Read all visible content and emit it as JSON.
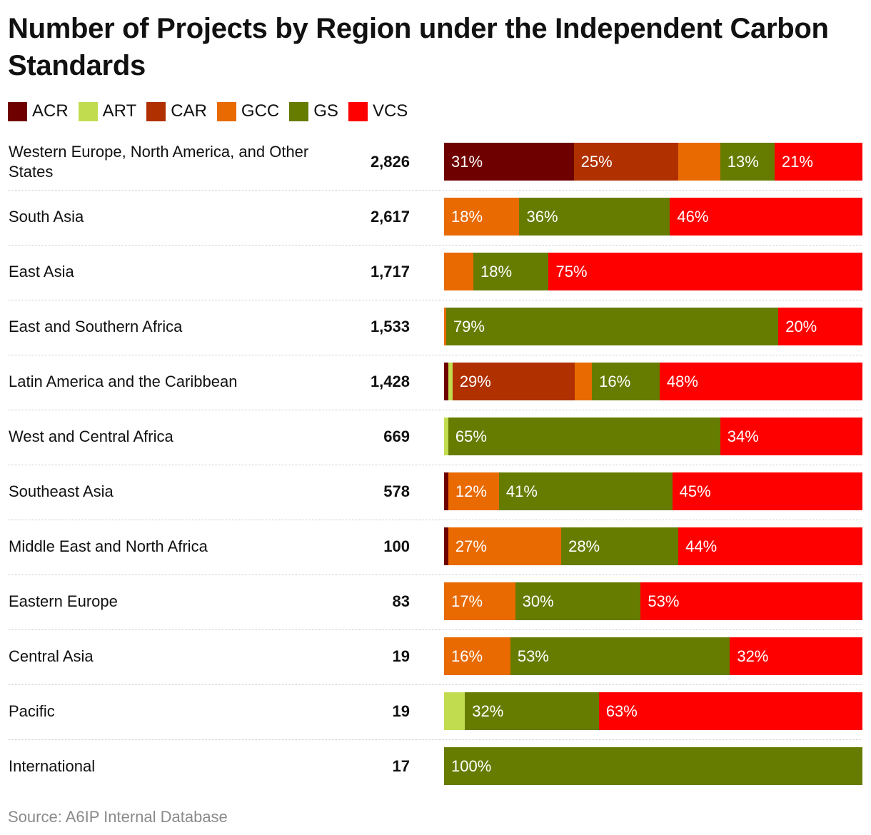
{
  "title": "Number of Projects by Region under the Independent Carbon Standards",
  "source": "Source: A6IP Internal Database",
  "colors": {
    "ACR": "#6e0000",
    "ART": "#c2dc50",
    "CAR": "#b03000",
    "GCC": "#e86a00",
    "GS": "#667c00",
    "VCS": "#ff0000"
  },
  "chart_data": {
    "type": "bar",
    "orientation": "horizontal",
    "stacked": "100%",
    "title": "Number of Projects by Region under the Independent Carbon Standards",
    "legend": [
      "ACR",
      "ART",
      "CAR",
      "GCC",
      "GS",
      "VCS"
    ],
    "legend_position": "top-left",
    "categories": [
      "Western Europe, North America, and Other States",
      "South Asia",
      "East Asia",
      "East and Southern Africa",
      "Latin America and the Caribbean",
      "West and Central Africa",
      "Southeast Asia",
      "Middle East and North Africa",
      "Eastern Europe",
      "Central Asia",
      "Pacific",
      "International"
    ],
    "totals": [
      "2,826",
      "2,617",
      "1,717",
      "1,533",
      "1,428",
      "669",
      "578",
      "100",
      "83",
      "19",
      "19",
      "17"
    ],
    "series": [
      {
        "name": "ACR",
        "values": [
          31,
          0,
          0,
          0,
          1,
          0,
          1,
          1,
          0,
          0,
          0,
          0
        ]
      },
      {
        "name": "ART",
        "values": [
          0,
          0,
          0,
          0,
          1,
          1,
          0,
          0,
          0,
          0,
          5,
          0
        ]
      },
      {
        "name": "CAR",
        "values": [
          25,
          0,
          0,
          0,
          29,
          0,
          0,
          0,
          0,
          0,
          0,
          0
        ]
      },
      {
        "name": "GCC",
        "values": [
          10,
          18,
          7,
          0.5,
          4,
          0,
          12,
          27,
          17,
          16,
          0,
          0
        ]
      },
      {
        "name": "GS",
        "values": [
          13,
          36,
          18,
          79,
          16,
          65,
          41,
          28,
          30,
          53,
          32,
          100
        ]
      },
      {
        "name": "VCS",
        "values": [
          21,
          46,
          75,
          20,
          48,
          34,
          45,
          44,
          53,
          32,
          63,
          0
        ]
      }
    ],
    "labels": [
      [
        "31%",
        "",
        "25%",
        "",
        "13%",
        "21%"
      ],
      [
        "",
        "",
        "",
        "18%",
        "36%",
        "46%"
      ],
      [
        "",
        "",
        "",
        "",
        "18%",
        "75%"
      ],
      [
        "",
        "",
        "",
        "",
        "79%",
        "20%"
      ],
      [
        "",
        "",
        "29%",
        "",
        "16%",
        "48%"
      ],
      [
        "",
        "",
        "",
        "",
        "65%",
        "34%"
      ],
      [
        "",
        "",
        "",
        "12%",
        "41%",
        "45%"
      ],
      [
        "",
        "",
        "",
        "27%",
        "28%",
        "44%"
      ],
      [
        "",
        "",
        "",
        "17%",
        "30%",
        "53%"
      ],
      [
        "",
        "",
        "",
        "16%",
        "53%",
        "32%"
      ],
      [
        "",
        "",
        "",
        "",
        "32%",
        "63%"
      ],
      [
        "",
        "",
        "",
        "",
        "100%",
        ""
      ]
    ],
    "xlim": [
      0,
      100
    ]
  }
}
